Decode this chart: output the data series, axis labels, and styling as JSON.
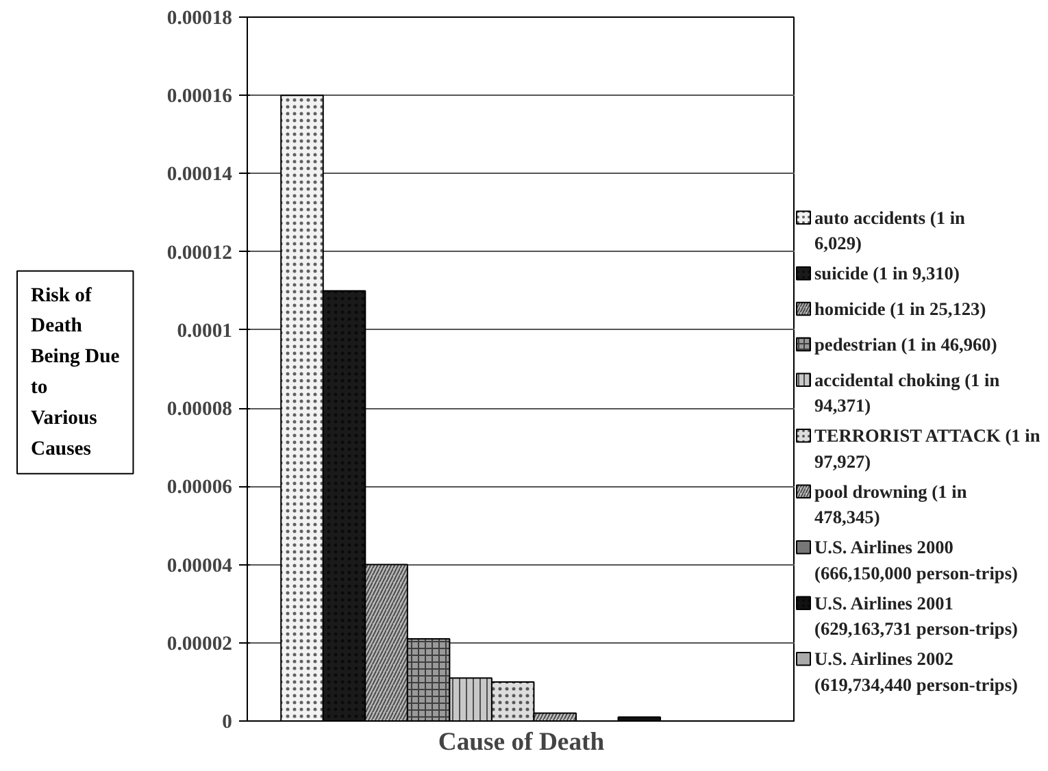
{
  "chart_data": {
    "type": "bar",
    "xlabel": "Cause of Death",
    "ylabel": "Risk of Death Being Due to Various Causes",
    "categories": [
      null
    ],
    "series": [
      {
        "name": "auto accidents (1 in 6,029)",
        "color": "#f2f2f2",
        "values": [
          0.00016
        ]
      },
      {
        "name": "suicide (1 in 9,310)",
        "color": "#1a1a1a",
        "values": [
          0.00011
        ]
      },
      {
        "name": "homicide (1 in 25,123)",
        "color": "#b8b8b8",
        "values": [
          4e-05
        ]
      },
      {
        "name": "pedestrian (1 in 46,960)",
        "color": "#9a9a9a",
        "values": [
          2.1e-05
        ]
      },
      {
        "name": "accidental choking (1 in 94,371)",
        "color": "#c8c8c8",
        "values": [
          1.1e-05
        ]
      },
      {
        "name": "TERRORIST ATTACK (1 in 97,927)",
        "color": "#dddddd",
        "values": [
          1e-05
        ]
      },
      {
        "name": "pool drowning (1 in 478,345)",
        "color": "#c0c0c0",
        "values": [
          2e-06
        ]
      },
      {
        "name": "U.S. Airlines 2000 (666,150,000 person-trips)",
        "color": "#777777",
        "values": [
          0
        ]
      },
      {
        "name": "U.S. Airlines 2001 (629,163,731 person-trips)",
        "color": "#111111",
        "values": [
          1e-06
        ]
      },
      {
        "name": "U.S. Airlines 2002 (619,734,440 person-trips)",
        "color": "#aaaaaa",
        "values": [
          0
        ]
      }
    ],
    "ylim": [
      0,
      0.00018
    ],
    "yticks": [
      {
        "value": 0,
        "label": "0"
      },
      {
        "value": 2e-05,
        "label": "0.00002"
      },
      {
        "value": 4e-05,
        "label": "0.00004"
      },
      {
        "value": 6e-05,
        "label": "0.00006"
      },
      {
        "value": 8e-05,
        "label": "0.00008"
      },
      {
        "value": 0.0001,
        "label": "0.0001"
      },
      {
        "value": 0.00012,
        "label": "0.00012"
      },
      {
        "value": 0.00014,
        "label": "0.00014"
      },
      {
        "value": 0.00016,
        "label": "0.00016"
      },
      {
        "value": 0.00018,
        "label": "0.00018"
      }
    ],
    "tick_labels": "y",
    "grid": "y",
    "legend": "right"
  }
}
